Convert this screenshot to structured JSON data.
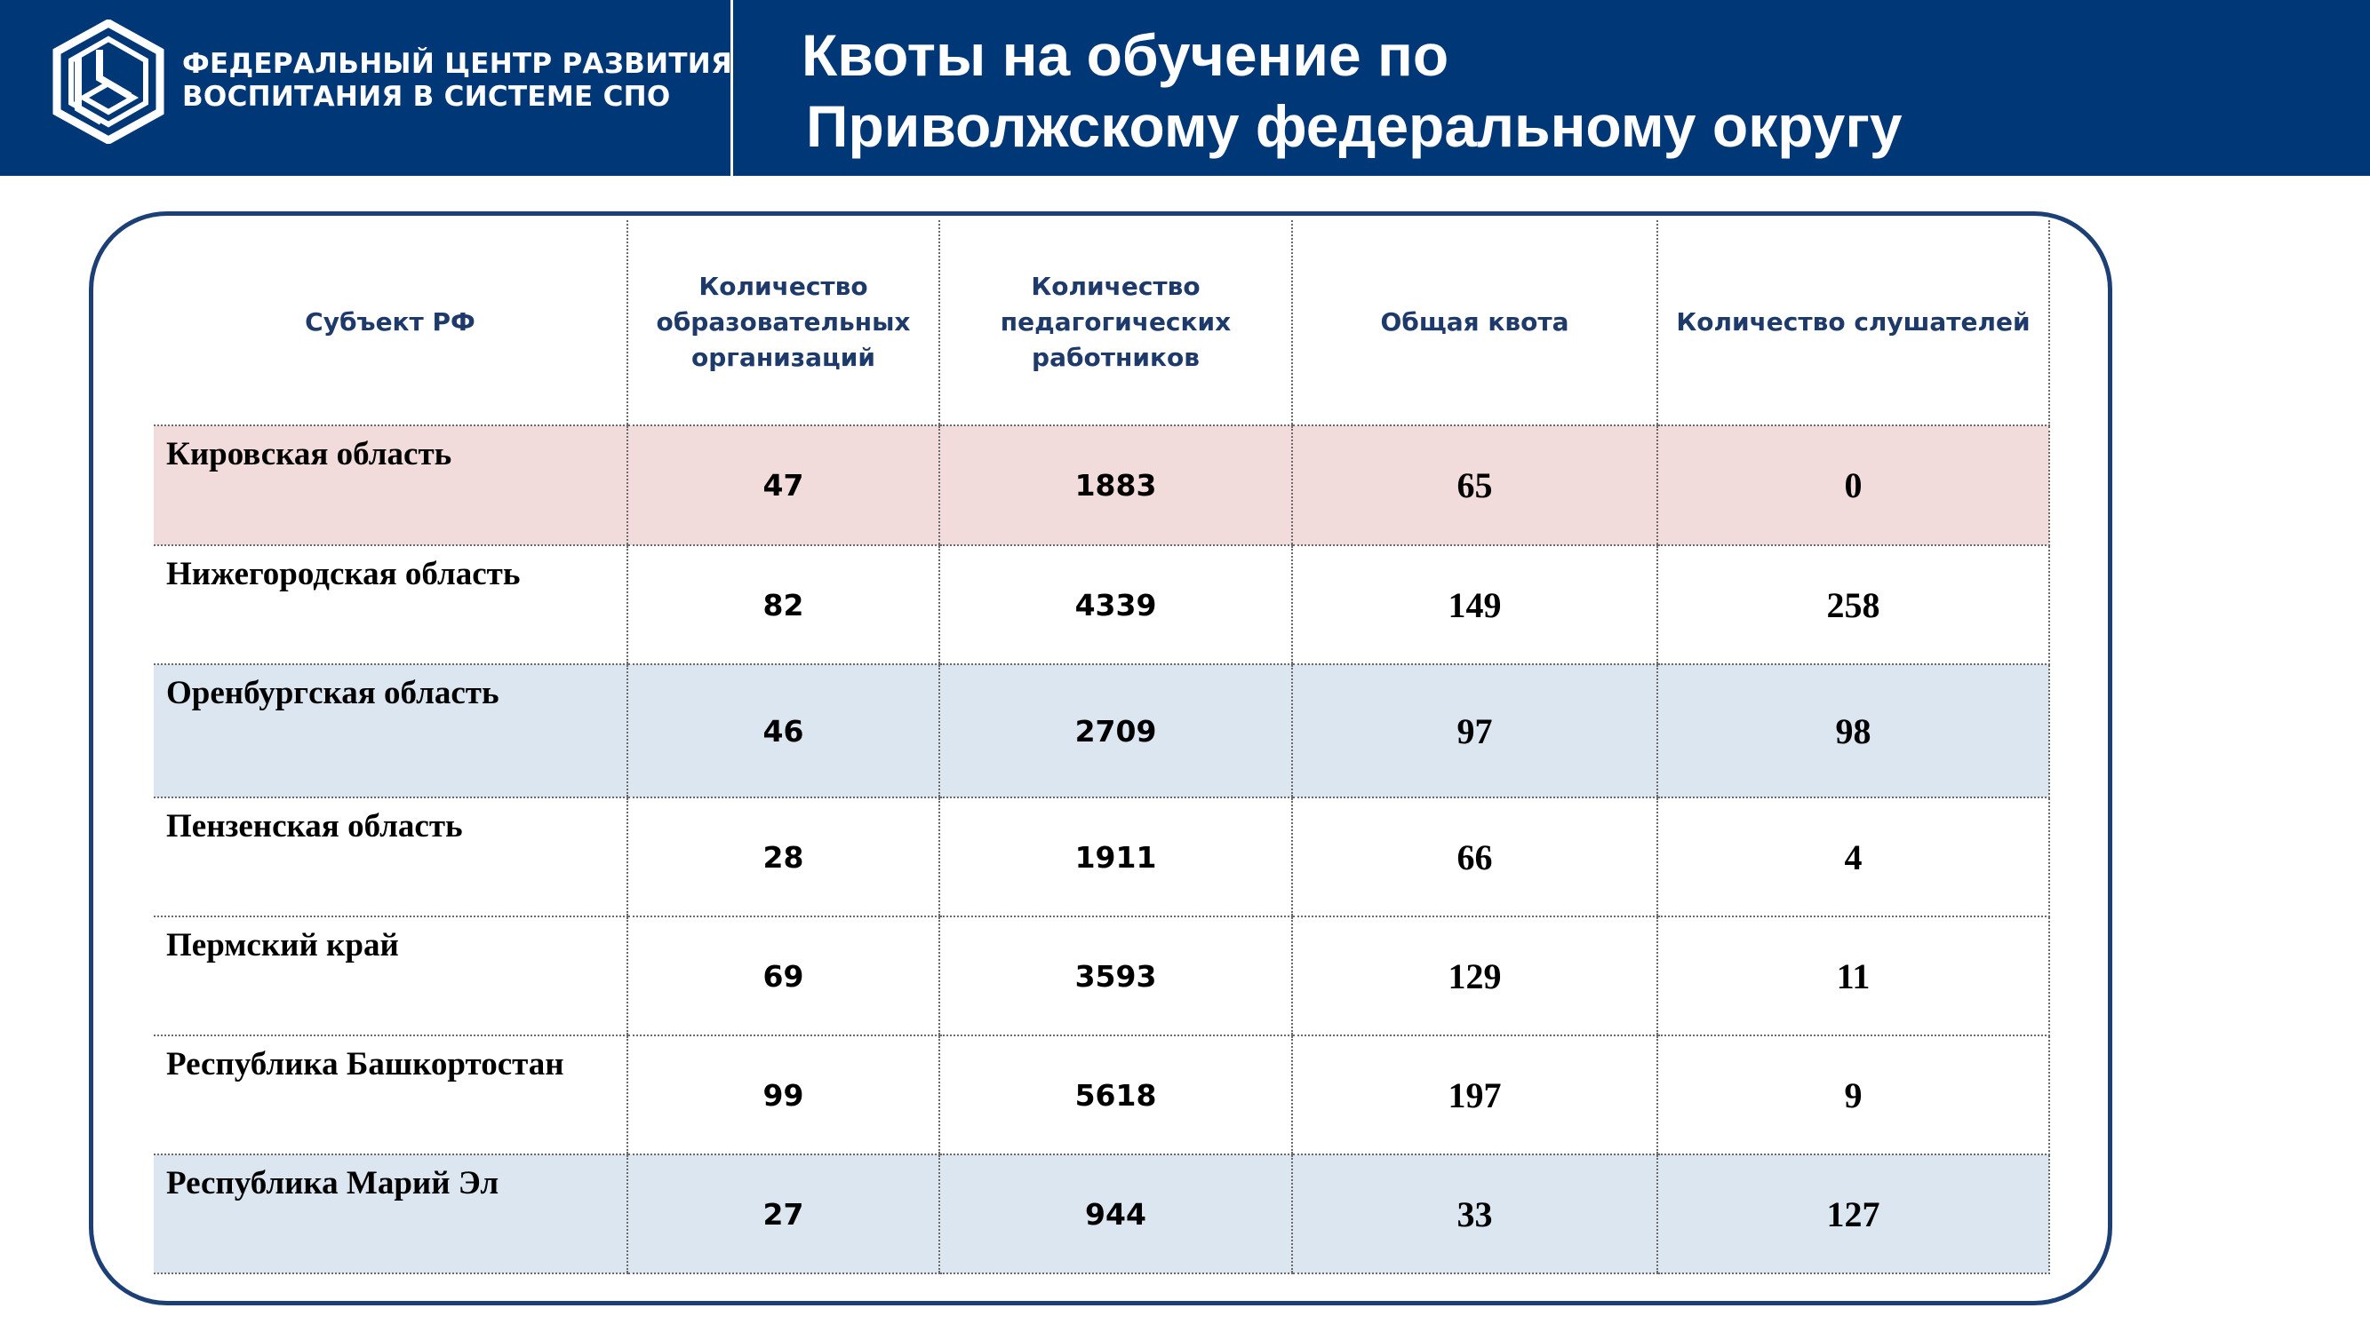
{
  "header": {
    "org_line1": "ФЕДЕРАЛЬНЫЙ ЦЕНТР РАЗВИТИЯ",
    "org_line2": "ВОСПИТАНИЯ В СИСТЕМЕ СПО",
    "title_line1": "Квоты на обучение по",
    "title_line2": "Приволжскому федеральному округу",
    "background_color": "#003777",
    "logo_icon": "hexagon-logo-icon"
  },
  "table": {
    "columns": [
      "Субъект РФ",
      "Количество образовательных организаций",
      "Количество педагогических работников",
      "Общая квота",
      "Количество слушателей"
    ],
    "rows": [
      {
        "region": "Кировская область",
        "orgs": "47",
        "teachers": "1883",
        "quota": "65",
        "listeners": "0",
        "highlight": "#f2dcdb"
      },
      {
        "region": "Нижегородская область",
        "orgs": "82",
        "teachers": "4339",
        "quota": "149",
        "listeners": "258",
        "highlight": "#ffffff"
      },
      {
        "region": "Оренбургская область",
        "orgs": "46",
        "teachers": "2709",
        "quota": "97",
        "listeners": "98",
        "highlight": "#dce6f1"
      },
      {
        "region": "Пензенская область",
        "orgs": "28",
        "teachers": "1911",
        "quota": "66",
        "listeners": "4",
        "highlight": "#ffffff"
      },
      {
        "region": "Пермский край",
        "orgs": "69",
        "teachers": "3593",
        "quota": "129",
        "listeners": "11",
        "highlight": "#ffffff"
      },
      {
        "region": "Республика Башкортостан",
        "orgs": "99",
        "teachers": "5618",
        "quota": "197",
        "listeners": "9",
        "highlight": "#ffffff"
      },
      {
        "region": "Республика Марий Эл",
        "orgs": "27",
        "teachers": "944",
        "quota": "33",
        "listeners": "127",
        "highlight": "#dce6f1"
      }
    ]
  }
}
